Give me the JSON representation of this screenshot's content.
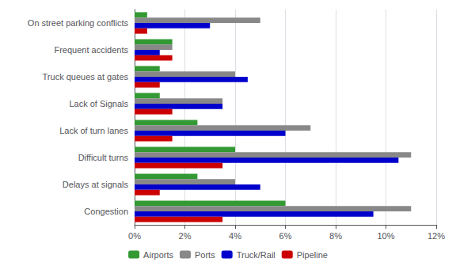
{
  "chart_data": {
    "type": "bar",
    "orientation": "horizontal",
    "categories": [
      "Congestion",
      "Delays at signals",
      "Difficult turns",
      "Lack of turn lanes",
      "Lack of Signals",
      "Truck queues at gates",
      "Frequent accidents",
      "On street parking conflicts"
    ],
    "series": [
      {
        "name": "Airports",
        "color": "#339933",
        "values": [
          6.0,
          2.5,
          4.0,
          2.5,
          1.0,
          1.0,
          1.5,
          0.5
        ]
      },
      {
        "name": "Ports",
        "color": "#888888",
        "values": [
          11.0,
          4.0,
          11.0,
          7.0,
          3.5,
          4.0,
          1.5,
          5.0
        ]
      },
      {
        "name": "Truck/Rail",
        "color": "#0000cc",
        "values": [
          9.5,
          5.0,
          10.5,
          6.0,
          3.5,
          4.5,
          1.0,
          3.0
        ]
      },
      {
        "name": "Pipeline",
        "color": "#cc0000",
        "values": [
          3.5,
          1.0,
          3.5,
          1.5,
          1.5,
          1.0,
          1.5,
          0.5
        ]
      }
    ],
    "xlim": [
      0,
      12
    ],
    "xticks": [
      {
        "value": 0,
        "label": "0%"
      },
      {
        "value": 2,
        "label": "2%"
      },
      {
        "value": 4,
        "label": "4%"
      },
      {
        "value": 6,
        "label": "6%"
      },
      {
        "value": 8,
        "label": "8%"
      },
      {
        "value": 10,
        "label": "10%"
      },
      {
        "value": 12,
        "label": "12%"
      }
    ],
    "grid": true,
    "legend": "bottom"
  }
}
